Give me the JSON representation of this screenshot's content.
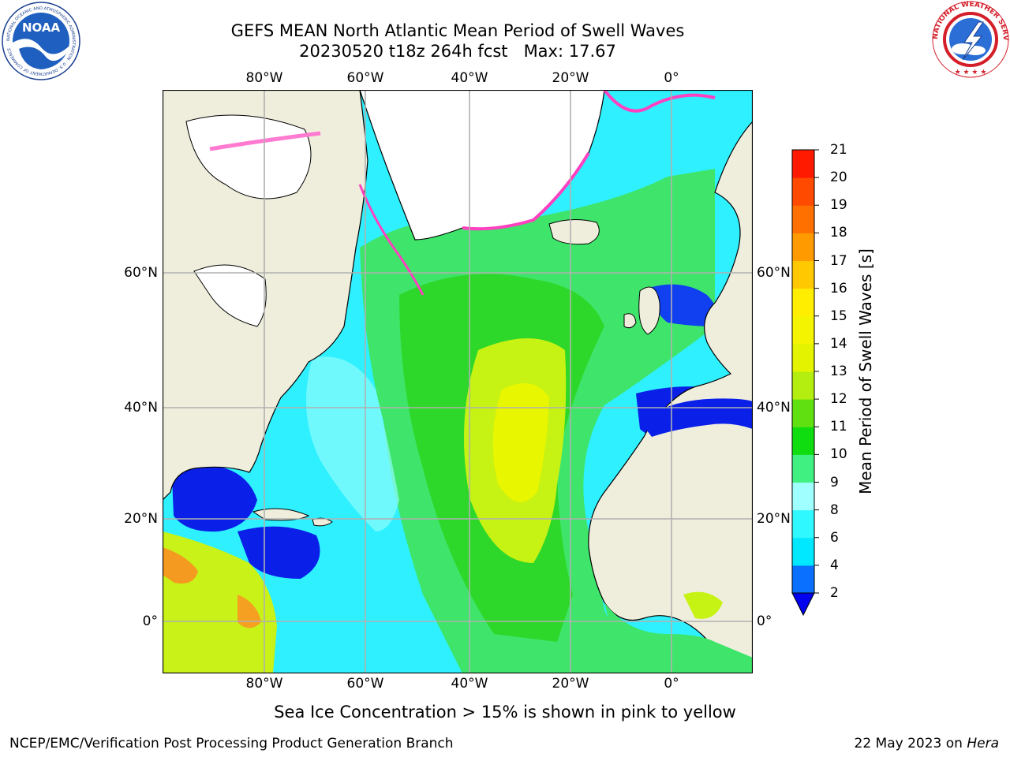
{
  "title": {
    "line1": "GEFS MEAN North Atlantic Mean Period of Swell Waves",
    "line2": "20230520 t18z 264h fcst   Max: 17.67"
  },
  "map": {
    "lon_labels": [
      "80°W",
      "60°W",
      "40°W",
      "20°W",
      "0°"
    ],
    "lat_labels": [
      "60°N",
      "40°N",
      "20°N",
      "0°"
    ],
    "note": "Sea Ice Concentration > 15% is shown in pink to yellow",
    "colors": {
      "ocean_short": "#0000ff",
      "land": "#efeedd",
      "ice": "#ffffff",
      "grid": "#b0b0b0"
    }
  },
  "colorbar": {
    "label": "Mean Period of Swell Waves [s]",
    "tick_labels": [
      "2",
      "4",
      "6",
      "8",
      "9",
      "10",
      "11",
      "12",
      "13",
      "14",
      "15",
      "16",
      "17",
      "18",
      "19",
      "20",
      "21"
    ],
    "bands": [
      "#0a70ff",
      "#00e8ff",
      "#30f8ff",
      "#a0ffff",
      "#40f080",
      "#10dd10",
      "#60e010",
      "#b4ee10",
      "#e4f400",
      "#f4f400",
      "#ffee00",
      "#ffc800",
      "#ff9a00",
      "#ff7000",
      "#ff4a00",
      "#ff1a00"
    ],
    "under_color": "#0000ee"
  },
  "footer": {
    "left": "NCEP/EMC/Verification Post Processing Product Generation Branch",
    "date": "22 May 2023 on",
    "machine": "Hera"
  },
  "logos": {
    "noaa": "NOAA",
    "noaa_ring": "NATIONAL OCEANIC AND ATMOSPHERIC ADMINISTRATION · U.S. DEPARTMENT OF COMMERCE",
    "nws_ring": "NATIONAL WEATHER SERVICE"
  },
  "chart_data": {
    "type": "heatmap",
    "title": "GEFS MEAN North Atlantic Mean Period of Swell Waves",
    "subtitle": "20230520 t18z 264h fcst   Max: 17.67",
    "max_value": 17.67,
    "colorbar_label": "Mean Period of Swell Waves [s]",
    "colorbar_range": [
      2,
      21
    ],
    "x_ticks": [
      "80°W",
      "60°W",
      "40°W",
      "20°W",
      "0°"
    ],
    "y_ticks": [
      "60°N",
      "40°N",
      "20°N",
      "0°"
    ],
    "lon_range": [
      -99,
      16
    ],
    "lat_range": [
      -9,
      80
    ],
    "grid": true
  }
}
